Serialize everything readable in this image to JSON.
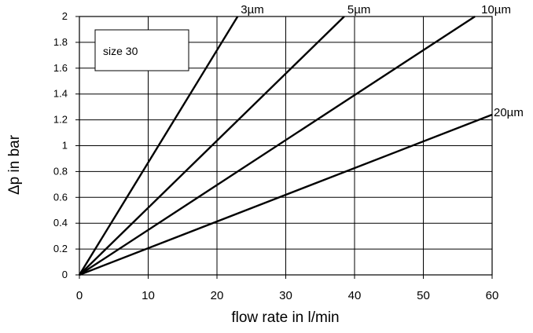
{
  "chart_data": {
    "type": "line",
    "title": "",
    "xlabel": "flow rate in l/min",
    "ylabel": "Δp in bar",
    "xlim": [
      0,
      60
    ],
    "ylim": [
      0,
      2
    ],
    "x_ticks": [
      0,
      10,
      20,
      30,
      40,
      50,
      60
    ],
    "y_ticks": [
      0,
      0.2,
      0.4,
      0.6,
      0.8,
      1,
      1.2,
      1.4,
      1.6,
      1.8,
      2
    ],
    "grid": true,
    "annotation": "size 30",
    "series": [
      {
        "name": "3µm",
        "x": [
          0,
          23
        ],
        "y": [
          0,
          2
        ]
      },
      {
        "name": "5µm",
        "x": [
          0,
          38.5
        ],
        "y": [
          0,
          2
        ]
      },
      {
        "name": "10µm",
        "x": [
          0,
          57.5
        ],
        "y": [
          0,
          2
        ]
      },
      {
        "name": "20µm",
        "x": [
          0,
          60
        ],
        "y": [
          0,
          1.24
        ]
      }
    ],
    "colors": {
      "line": "#000000",
      "grid": "#000000",
      "background": "#ffffff"
    }
  }
}
